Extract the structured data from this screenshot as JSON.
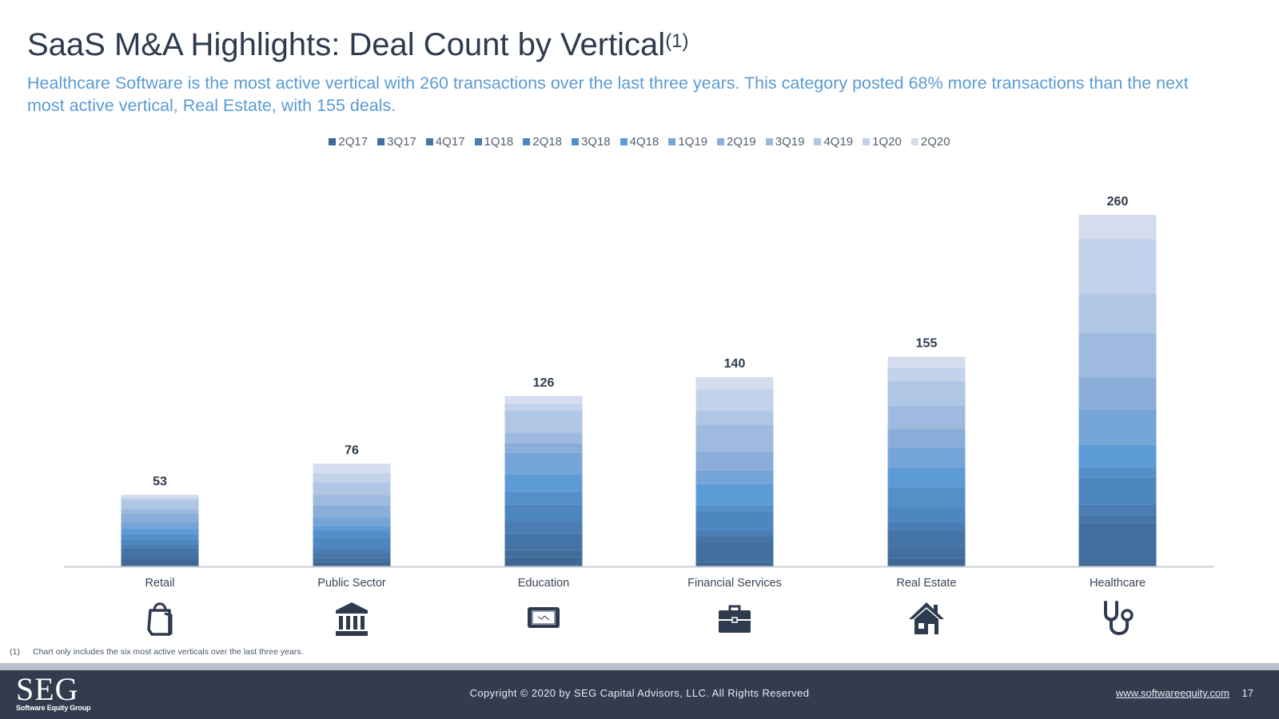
{
  "header": {
    "title": "SaaS M&A Highlights: Deal Count by Vertical",
    "title_sup": "(1)",
    "subtitle": "Healthcare Software is the most active vertical with 260 transactions over the last three years. This category posted 68% more transactions than the next most active vertical, Real Estate, with 155 deals."
  },
  "legend": [
    {
      "label": "2Q17",
      "color": "#3f6994"
    },
    {
      "label": "3Q17",
      "color": "#416e9d"
    },
    {
      "label": "4Q17",
      "color": "#4574a6"
    },
    {
      "label": "1Q18",
      "color": "#497db3"
    },
    {
      "label": "2Q18",
      "color": "#4e87bf"
    },
    {
      "label": "3Q18",
      "color": "#5490c8"
    },
    {
      "label": "4Q18",
      "color": "#5c9bd6"
    },
    {
      "label": "1Q19",
      "color": "#75a4d7"
    },
    {
      "label": "2Q19",
      "color": "#8aaed9"
    },
    {
      "label": "3Q19",
      "color": "#9ebbdf"
    },
    {
      "label": "4Q19",
      "color": "#b0c6e5"
    },
    {
      "label": "1Q20",
      "color": "#c2d2ea"
    },
    {
      "label": "2Q20",
      "color": "#d3ddee"
    }
  ],
  "chart_data": {
    "type": "bar",
    "stacked": true,
    "title": "",
    "xlabel": "",
    "ylabel": "",
    "ylim": [
      0,
      260
    ],
    "grid": false,
    "legend_position": "top-center",
    "categories": [
      "Retail",
      "Public Sector",
      "Education",
      "Financial Services",
      "Real Estate",
      "Healthcare"
    ],
    "totals": [
      53,
      76,
      126,
      140,
      155,
      260
    ],
    "series": [
      {
        "name": "2Q17",
        "values": [
          5,
          3,
          7,
          3,
          6,
          2
        ]
      },
      {
        "name": "3Q17",
        "values": [
          3,
          3,
          5,
          15,
          7,
          30
        ]
      },
      {
        "name": "4Q17",
        "values": [
          5,
          4,
          12,
          5,
          14,
          6
        ]
      },
      {
        "name": "1Q18",
        "values": [
          3,
          3,
          10,
          3,
          6,
          8
        ]
      },
      {
        "name": "2Q18",
        "values": [
          4,
          8,
          12,
          15,
          11,
          20
        ]
      },
      {
        "name": "3Q18",
        "values": [
          4,
          5,
          9,
          4,
          15,
          7
        ]
      },
      {
        "name": "4Q18",
        "values": [
          4,
          4,
          13,
          16,
          14,
          17
        ]
      },
      {
        "name": "1Q19",
        "values": [
          5,
          6,
          16,
          10,
          15,
          26
        ]
      },
      {
        "name": "2Q19",
        "values": [
          6,
          9,
          7,
          14,
          14,
          24
        ]
      },
      {
        "name": "3Q19",
        "values": [
          4,
          8,
          8,
          20,
          17,
          33
        ]
      },
      {
        "name": "4Q19",
        "values": [
          6,
          9,
          16,
          10,
          18,
          29
        ]
      },
      {
        "name": "1Q20",
        "values": [
          2,
          7,
          5,
          16,
          10,
          40
        ]
      },
      {
        "name": "2Q20",
        "values": [
          2,
          7,
          6,
          9,
          8,
          18
        ]
      }
    ]
  },
  "icons": [
    "shopping-bag",
    "government-building",
    "tablet",
    "briefcase",
    "house",
    "stethoscope"
  ],
  "footnote": {
    "num": "(1)",
    "text": "Chart only includes the six most active verticals over the last three years."
  },
  "footer": {
    "logo_main": "SEG",
    "logo_sub": "Software Equity Group",
    "copyright": "Copyright © 2020 by SEG Capital Advisors, LLC. All Rights Reserved",
    "website": "www.softwareequity.com",
    "page_number": "17"
  }
}
